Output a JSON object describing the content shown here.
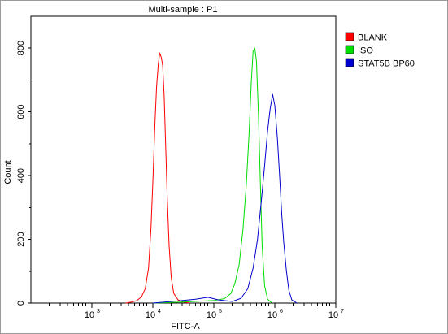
{
  "chart_data": {
    "type": "line",
    "title": "Multi-sample : P1",
    "xlabel": "FITC-A",
    "ylabel": "Count",
    "x_scale": "log",
    "xlim": [
      100,
      10000000
    ],
    "ylim": [
      0,
      900
    ],
    "x_ticks": [
      {
        "base": "10",
        "exp": "3",
        "value": 1000
      },
      {
        "base": "10",
        "exp": "4",
        "value": 10000
      },
      {
        "base": "10",
        "exp": "5",
        "value": 100000
      },
      {
        "base": "10",
        "exp": "6",
        "value": 1000000
      },
      {
        "base": "10",
        "exp": "7",
        "value": 10000000
      }
    ],
    "y_ticks": [
      "0",
      "200",
      "400",
      "600",
      "800"
    ],
    "legend_position": "top-right",
    "series": [
      {
        "name": "BLANK",
        "color": "#ff0000",
        "points": [
          [
            3600,
            0
          ],
          [
            4500,
            3
          ],
          [
            5500,
            8
          ],
          [
            6500,
            20
          ],
          [
            7500,
            45
          ],
          [
            8500,
            110
          ],
          [
            9300,
            230
          ],
          [
            10000,
            380
          ],
          [
            10800,
            560
          ],
          [
            11500,
            680
          ],
          [
            12300,
            750
          ],
          [
            13000,
            785
          ],
          [
            13800,
            770
          ],
          [
            14500,
            745
          ],
          [
            15300,
            650
          ],
          [
            16200,
            500
          ],
          [
            17200,
            330
          ],
          [
            18500,
            180
          ],
          [
            20000,
            80
          ],
          [
            22000,
            30
          ],
          [
            26000,
            10
          ],
          [
            32000,
            3
          ],
          [
            40000,
            0
          ]
        ]
      },
      {
        "name": "ISO",
        "color": "#00dd00",
        "points": [
          [
            10000,
            0
          ],
          [
            30000,
            3
          ],
          [
            60000,
            6
          ],
          [
            100000,
            8
          ],
          [
            150000,
            14
          ],
          [
            190000,
            30
          ],
          [
            220000,
            60
          ],
          [
            260000,
            120
          ],
          [
            300000,
            230
          ],
          [
            340000,
            370
          ],
          [
            380000,
            540
          ],
          [
            410000,
            690
          ],
          [
            440000,
            790
          ],
          [
            470000,
            800
          ],
          [
            500000,
            760
          ],
          [
            540000,
            590
          ],
          [
            580000,
            370
          ],
          [
            620000,
            180
          ],
          [
            680000,
            55
          ],
          [
            760000,
            12
          ],
          [
            900000,
            0
          ]
        ]
      },
      {
        "name": "STAT5B BP60",
        "color": "#0000cc",
        "points": [
          [
            10000,
            0
          ],
          [
            30000,
            8
          ],
          [
            50000,
            12
          ],
          [
            80000,
            18
          ],
          [
            120000,
            10
          ],
          [
            200000,
            5
          ],
          [
            280000,
            15
          ],
          [
            360000,
            45
          ],
          [
            440000,
            110
          ],
          [
            520000,
            200
          ],
          [
            600000,
            320
          ],
          [
            680000,
            430
          ],
          [
            760000,
            540
          ],
          [
            840000,
            610
          ],
          [
            920000,
            655
          ],
          [
            1000000,
            620
          ],
          [
            1100000,
            520
          ],
          [
            1200000,
            400
          ],
          [
            1300000,
            280
          ],
          [
            1400000,
            190
          ],
          [
            1550000,
            100
          ],
          [
            1700000,
            40
          ],
          [
            1900000,
            10
          ],
          [
            2300000,
            0
          ]
        ]
      }
    ]
  }
}
